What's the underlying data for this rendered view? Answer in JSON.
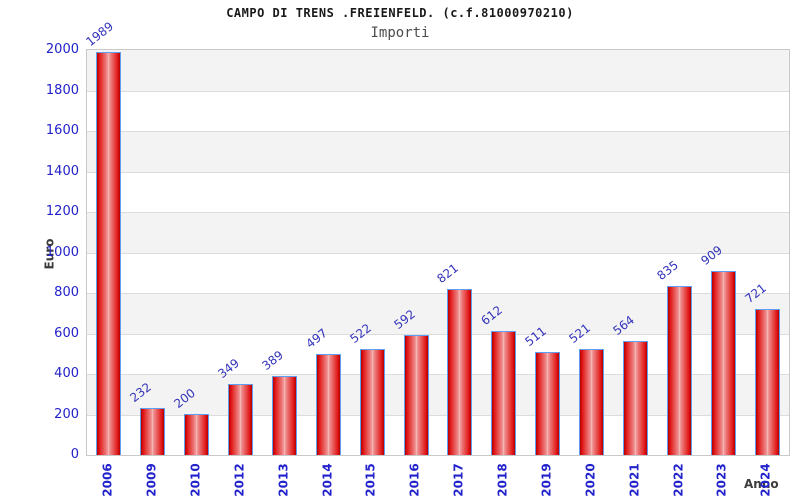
{
  "header": {
    "title": "CAMPO DI TRENS .FREIENFELD. (c.f.81000970210)",
    "subtitle": "Importi"
  },
  "axes": {
    "ylabel": "Euro",
    "xlabel": "Anno"
  },
  "chart_data": {
    "type": "bar",
    "title": "CAMPO DI TRENS .FREIENFELD. (c.f.81000970210)",
    "subtitle": "Importi",
    "xlabel": "Anno",
    "ylabel": "Euro",
    "categories": [
      "2006",
      "2009",
      "2010",
      "2012",
      "2013",
      "2014",
      "2015",
      "2016",
      "2017",
      "2018",
      "2019",
      "2020",
      "2021",
      "2022",
      "2023",
      "2024"
    ],
    "values": [
      1989,
      232,
      200,
      349,
      389,
      497,
      522,
      592,
      821,
      612,
      511,
      521,
      564,
      835,
      909,
      721
    ],
    "ylim": [
      0,
      2000
    ],
    "ytick_step": 200,
    "grid": "horizontal gridlines every 200 with alternating gray/white bands",
    "legend": "none",
    "colors": {
      "tick_label_blue": "#2222cc",
      "value_label_blue": "#3333bb",
      "bar_border": "#5e9ff2",
      "bar_edge_dark": "#b30000",
      "bar_bright": "#e01616",
      "bar_mid_light": "#ef8f8f",
      "bar_highlight": "#f6bcbc",
      "band_gray": "#f3f3f3",
      "band_white": "#ffffff",
      "grid_line": "#dcdcdc",
      "plot_border": "#c9c9c9",
      "title_color": "#1a1a1a",
      "subtitle_color": "#4d4d4d",
      "axis_title_color": "#3b3b3b"
    }
  }
}
